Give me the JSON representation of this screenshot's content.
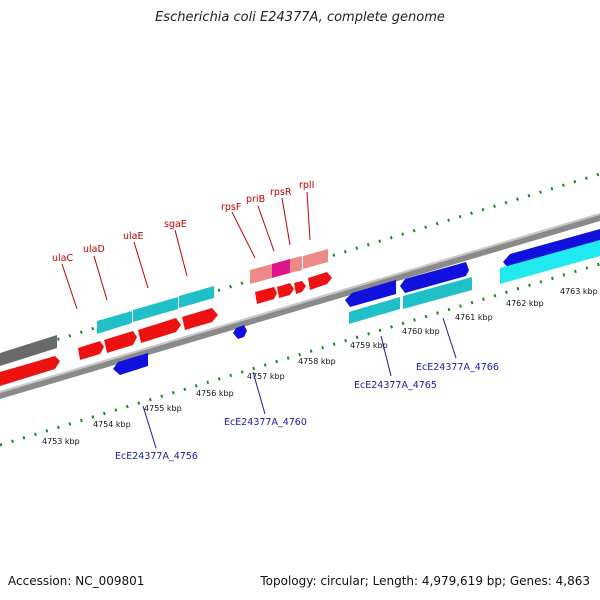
{
  "title": "Escherichia coli E24377A, complete genome",
  "footer": {
    "accession": "Accession: NC_009801",
    "summary": "Topology: circular; Length: 4,979,619 bp; Genes: 4,863"
  },
  "colors": {
    "forward_gene": "#ee1111",
    "reverse_gene": "#1111dd",
    "forward_cds": "#20c0c8",
    "highlight_gene": "#ec8a8a",
    "highlight_strong": "#e0148c",
    "backbone": "#7a7a7a",
    "tick": "#1a8a1a"
  },
  "scale_labels": [
    {
      "label": "4753 kbp"
    },
    {
      "label": "4754 kbp"
    },
    {
      "label": "4755 kbp"
    },
    {
      "label": "4756 kbp"
    },
    {
      "label": "4757 kbp"
    },
    {
      "label": "4758 kbp"
    },
    {
      "label": "4759 kbp"
    },
    {
      "label": "4760 kbp"
    },
    {
      "label": "4761 kbp"
    },
    {
      "label": "4762 kbp"
    },
    {
      "label": "4763 kbp"
    }
  ],
  "gene_labels_forward": [
    {
      "label": "ulaC"
    },
    {
      "label": "ulaD"
    },
    {
      "label": "ulaE"
    },
    {
      "label": "sgaE"
    },
    {
      "label": "rpsF"
    },
    {
      "label": "priB"
    },
    {
      "label": "rpsR"
    },
    {
      "label": "rplI"
    }
  ],
  "gene_labels_reverse": [
    {
      "label": "EcE24377A_4756"
    },
    {
      "label": "EcE24377A_4760"
    },
    {
      "label": "EcE24377A_4765"
    },
    {
      "label": "EcE24377A_4766"
    }
  ]
}
